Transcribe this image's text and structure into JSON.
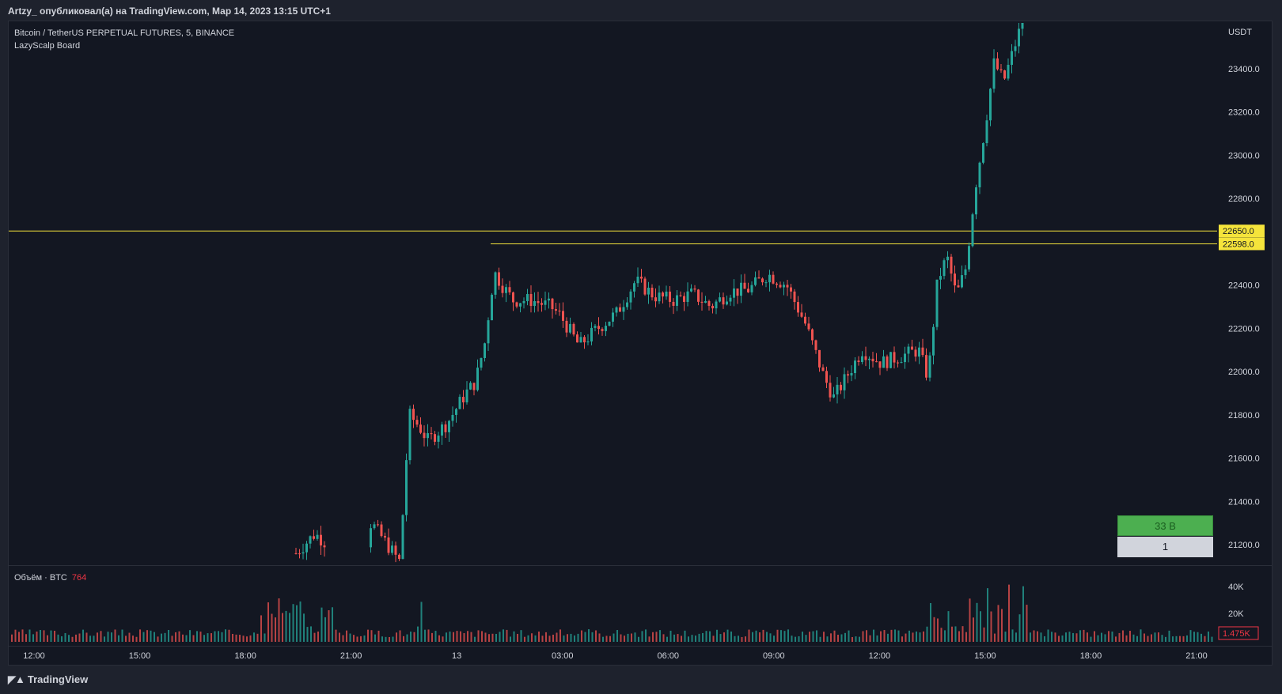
{
  "header": {
    "publish_line": "Artzy_ опубликовал(а) на TradingView.com, Мар 14, 2023 13:15 UTC+1"
  },
  "legend": {
    "symbol": "Bitcoin / TetherUS PERPETUAL FUTURES, 5, BINANCE",
    "indicator": "LazyScalp Board"
  },
  "volume_legend": {
    "label": "Объём · BTC",
    "value": "764"
  },
  "board": {
    "top_label": "33 B",
    "bottom_label": "1"
  },
  "footer": {
    "brand": "TradingView"
  },
  "colors": {
    "up": "#26a69a",
    "down": "#ef5350",
    "level": "#f5e43b",
    "background": "#131722"
  },
  "chart_data": {
    "type": "candlestick",
    "currency": "USDT",
    "ylim": [
      21080,
      23620
    ],
    "y_ticks": [
      "23400.0",
      "23200.0",
      "23000.0",
      "22800.0",
      "22400.0",
      "22200.0",
      "22000.0",
      "21800.0",
      "21600.0",
      "21400.0",
      "21200.0"
    ],
    "x_ticks": [
      "12:00",
      "15:00",
      "18:00",
      "21:00",
      "13",
      "03:00",
      "06:00",
      "09:00",
      "12:00",
      "15:00",
      "18:00",
      "21:00"
    ],
    "levels": [
      {
        "price": 22650.0,
        "label": "22650.0"
      },
      {
        "price": 22598.0,
        "label": "22598.0"
      }
    ],
    "price_path": [
      [
        0,
        21160
      ],
      [
        2,
        21250
      ],
      [
        4,
        21180
      ],
      [
        8,
        21300
      ],
      [
        11,
        21120
      ],
      [
        12,
        21800
      ],
      [
        13,
        21750
      ],
      [
        14,
        21680
      ],
      [
        16,
        21760
      ],
      [
        18,
        21900
      ],
      [
        19,
        21950
      ],
      [
        20,
        22130
      ],
      [
        21,
        22460
      ],
      [
        22,
        22390
      ],
      [
        23,
        22330
      ],
      [
        25,
        22330
      ],
      [
        27,
        22300
      ],
      [
        28,
        22260
      ],
      [
        30,
        22120
      ],
      [
        32,
        22200
      ],
      [
        34,
        22270
      ],
      [
        36,
        22420
      ],
      [
        38,
        22350
      ],
      [
        40,
        22330
      ],
      [
        42,
        22360
      ],
      [
        44,
        22300
      ],
      [
        46,
        22370
      ],
      [
        48,
        22380
      ],
      [
        50,
        22450
      ],
      [
        52,
        22400
      ],
      [
        54,
        22220
      ],
      [
        56,
        21970
      ],
      [
        57,
        21880
      ],
      [
        58,
        21950
      ],
      [
        60,
        22100
      ],
      [
        62,
        22040
      ],
      [
        64,
        22070
      ],
      [
        66,
        22100
      ],
      [
        67,
        21970
      ],
      [
        68,
        22420
      ],
      [
        69,
        22530
      ],
      [
        70,
        22350
      ],
      [
        71,
        22480
      ],
      [
        72,
        22850
      ],
      [
        73,
        23120
      ],
      [
        74,
        23430
      ],
      [
        75,
        23340
      ],
      [
        76,
        23480
      ],
      [
        77,
        23620
      ]
    ],
    "volume_ticks": [
      "40K",
      "20K"
    ],
    "volume_current": "1.475K"
  }
}
